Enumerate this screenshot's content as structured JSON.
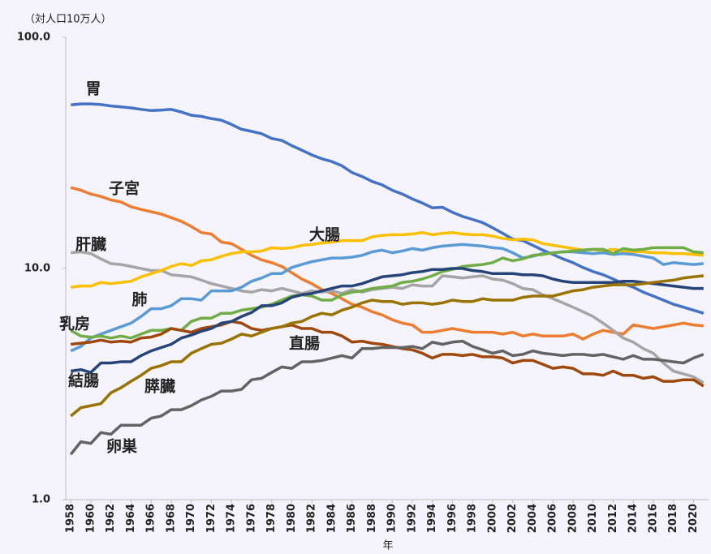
{
  "chart_data": {
    "type": "line",
    "y_label": "（対人口10万人）",
    "x_label": "年",
    "log_y": true,
    "x": [
      1958,
      1959,
      1960,
      1961,
      1962,
      1963,
      1964,
      1965,
      1966,
      1967,
      1968,
      1969,
      1970,
      1971,
      1972,
      1973,
      1974,
      1975,
      1976,
      1977,
      1978,
      1979,
      1980,
      1981,
      1982,
      1983,
      1984,
      1985,
      1986,
      1987,
      1988,
      1989,
      1990,
      1991,
      1992,
      1993,
      1994,
      1995,
      1996,
      1997,
      1998,
      1999,
      2000,
      2001,
      2002,
      2003,
      2004,
      2005,
      2006,
      2007,
      2008,
      2009,
      2010,
      2011,
      2012,
      2013,
      2014,
      2015,
      2016,
      2017,
      2018,
      2019,
      2020,
      2021
    ],
    "xlim": [
      1957.5,
      2021.5
    ],
    "xticks": [
      1958,
      1960,
      1962,
      1964,
      1966,
      1968,
      1970,
      1972,
      1974,
      1976,
      1978,
      1980,
      1982,
      1984,
      1986,
      1988,
      1990,
      1992,
      1994,
      1996,
      1998,
      2000,
      2002,
      2004,
      2006,
      2008,
      2010,
      2012,
      2014,
      2016,
      2018,
      2020
    ],
    "ylim": [
      1,
      100
    ],
    "yticks": [
      {
        "value": 1,
        "label": "1.0"
      },
      {
        "value": 10,
        "label": "10.0"
      },
      {
        "value": 100,
        "label": "100.0"
      }
    ],
    "series": [
      {
        "name": "胃",
        "color": "#4472c4",
        "values": [
          51.0,
          51.5,
          51.5,
          51.2,
          50.5,
          50.0,
          49.5,
          48.8,
          48.2,
          48.4,
          48.8,
          47.5,
          46.0,
          45.5,
          44.5,
          43.8,
          42.0,
          40.0,
          39.2,
          38.3,
          36.5,
          35.8,
          34.0,
          32.5,
          31.0,
          29.8,
          29.0,
          27.8,
          26.0,
          25.0,
          23.8,
          23.0,
          21.8,
          21.0,
          20.0,
          19.2,
          18.3,
          18.4,
          17.5,
          16.8,
          16.3,
          15.8,
          15.0,
          14.2,
          13.4,
          13.2,
          12.6,
          12.0,
          11.5,
          11.0,
          10.6,
          10.1,
          9.7,
          9.4,
          9.0,
          8.6,
          8.3,
          7.9,
          7.6,
          7.3,
          7.0,
          6.8,
          6.6,
          6.4
        ]
      },
      {
        "name": "子宮",
        "color": "#ed7d31",
        "values": [
          22.4,
          21.8,
          21.0,
          20.5,
          19.8,
          19.4,
          18.5,
          18.0,
          17.6,
          17.2,
          16.6,
          16.0,
          15.2,
          14.3,
          14.1,
          13.0,
          12.8,
          12.1,
          11.4,
          10.9,
          10.6,
          10.2,
          9.6,
          9.0,
          8.6,
          8.1,
          7.8,
          7.4,
          7.0,
          6.8,
          6.5,
          6.3,
          6.0,
          5.8,
          5.7,
          5.3,
          5.3,
          5.4,
          5.5,
          5.4,
          5.3,
          5.3,
          5.3,
          5.2,
          5.3,
          5.1,
          5.2,
          5.1,
          5.1,
          5.1,
          5.2,
          4.95,
          5.2,
          5.4,
          5.3,
          5.2,
          5.7,
          5.6,
          5.5,
          5.6,
          5.7,
          5.8,
          5.7,
          5.65
        ]
      },
      {
        "name": "肝臓",
        "color": "#a5a5a5",
        "values": [
          11.7,
          11.8,
          11.6,
          11.0,
          10.5,
          10.4,
          10.2,
          10.0,
          9.8,
          9.8,
          9.4,
          9.3,
          9.2,
          8.9,
          8.6,
          8.4,
          8.2,
          8.0,
          7.9,
          8.1,
          8.0,
          8.2,
          8.0,
          7.8,
          8.0,
          7.9,
          8.0,
          7.8,
          8.1,
          7.9,
          8.1,
          8.2,
          8.3,
          8.2,
          8.5,
          8.4,
          8.4,
          9.3,
          9.2,
          9.1,
          9.2,
          9.3,
          9.0,
          8.9,
          8.6,
          8.2,
          8.1,
          7.7,
          7.4,
          7.1,
          6.8,
          6.5,
          6.2,
          5.8,
          5.4,
          5.0,
          4.8,
          4.5,
          4.3,
          3.9,
          3.6,
          3.5,
          3.4,
          3.2
        ]
      },
      {
        "name": "大腸",
        "color": "#ffc000",
        "values": [
          8.3,
          8.4,
          8.4,
          8.7,
          8.6,
          8.7,
          8.8,
          9.2,
          9.5,
          9.8,
          10.2,
          10.5,
          10.3,
          10.8,
          10.9,
          11.3,
          11.6,
          11.8,
          11.8,
          11.9,
          12.3,
          12.2,
          12.3,
          12.6,
          12.7,
          12.9,
          13.0,
          13.2,
          13.2,
          13.2,
          13.7,
          13.9,
          14.0,
          14.0,
          14.1,
          14.3,
          14.0,
          14.2,
          14.3,
          14.1,
          14.0,
          14.0,
          13.8,
          13.5,
          13.3,
          13.4,
          13.3,
          12.8,
          12.6,
          12.4,
          12.2,
          12.0,
          12.1,
          11.9,
          12.1,
          11.9,
          11.8,
          11.8,
          11.7,
          11.7,
          11.6,
          11.6,
          11.5,
          11.4
        ]
      },
      {
        "name": "肺",
        "color": "#5b9bd5",
        "values": [
          4.4,
          4.6,
          5.0,
          5.2,
          5.4,
          5.6,
          5.8,
          6.2,
          6.7,
          6.7,
          6.9,
          7.4,
          7.4,
          7.3,
          8.0,
          8.0,
          8.0,
          8.3,
          8.8,
          9.1,
          9.5,
          9.5,
          10.1,
          10.4,
          10.7,
          10.9,
          11.1,
          11.1,
          11.2,
          11.4,
          11.8,
          12.0,
          11.7,
          11.9,
          12.2,
          12.0,
          12.3,
          12.5,
          12.6,
          12.7,
          12.6,
          12.5,
          12.3,
          12.2,
          11.7,
          11.1,
          11.3,
          11.6,
          11.7,
          11.8,
          11.8,
          11.7,
          11.6,
          11.7,
          11.5,
          11.6,
          11.5,
          11.3,
          11.1,
          10.4,
          10.6,
          10.5,
          10.4,
          10.5
        ]
      },
      {
        "name": "乳房",
        "color": "#70ad47",
        "values": [
          5.4,
          5.1,
          5.05,
          5.1,
          5.0,
          5.1,
          5.0,
          5.2,
          5.4,
          5.4,
          5.5,
          5.4,
          5.9,
          6.1,
          6.1,
          6.4,
          6.4,
          6.6,
          6.7,
          6.8,
          7.0,
          7.3,
          7.6,
          7.7,
          7.6,
          7.3,
          7.3,
          7.7,
          7.9,
          8.0,
          8.2,
          8.3,
          8.4,
          8.7,
          8.8,
          9.0,
          9.3,
          9.7,
          9.9,
          10.2,
          10.3,
          10.4,
          10.6,
          11.1,
          10.8,
          11.0,
          11.4,
          11.5,
          11.7,
          11.8,
          11.9,
          12.0,
          12.1,
          12.1,
          11.6,
          12.2,
          12.0,
          12.1,
          12.3,
          12.3,
          12.3,
          12.3,
          11.8,
          11.7
        ]
      },
      {
        "name": "直腸",
        "color": "#9e480e",
        "values": [
          4.7,
          4.75,
          4.8,
          4.9,
          4.8,
          4.85,
          4.8,
          5.0,
          5.05,
          5.2,
          5.5,
          5.4,
          5.3,
          5.5,
          5.6,
          5.7,
          5.9,
          5.8,
          5.5,
          5.4,
          5.5,
          5.6,
          5.7,
          5.5,
          5.5,
          5.3,
          5.3,
          5.1,
          4.8,
          4.85,
          4.75,
          4.7,
          4.6,
          4.5,
          4.45,
          4.3,
          4.1,
          4.25,
          4.25,
          4.2,
          4.25,
          4.15,
          4.15,
          4.1,
          3.9,
          4.0,
          4.0,
          3.85,
          3.7,
          3.75,
          3.7,
          3.5,
          3.5,
          3.45,
          3.6,
          3.45,
          3.45,
          3.35,
          3.4,
          3.25,
          3.25,
          3.3,
          3.3,
          3.1
        ]
      },
      {
        "name": "結腸",
        "color": "#264478",
        "values": [
          3.6,
          3.65,
          3.55,
          3.9,
          3.9,
          3.95,
          3.95,
          4.2,
          4.4,
          4.55,
          4.7,
          5.0,
          5.15,
          5.35,
          5.5,
          5.8,
          5.9,
          6.2,
          6.45,
          6.9,
          6.9,
          7.1,
          7.5,
          7.7,
          7.8,
          8.0,
          8.2,
          8.4,
          8.4,
          8.6,
          8.9,
          9.2,
          9.3,
          9.4,
          9.6,
          9.7,
          9.9,
          9.9,
          10.0,
          10.0,
          9.8,
          9.7,
          9.5,
          9.5,
          9.5,
          9.4,
          9.4,
          9.3,
          9.0,
          8.8,
          8.7,
          8.7,
          8.7,
          8.7,
          8.7,
          8.8,
          8.8,
          8.7,
          8.6,
          8.5,
          8.4,
          8.3,
          8.2,
          8.2
        ]
      },
      {
        "name": "膵臓",
        "color": "#997300",
        "values": [
          2.3,
          2.5,
          2.55,
          2.6,
          2.9,
          3.05,
          3.25,
          3.45,
          3.7,
          3.8,
          3.95,
          3.95,
          4.3,
          4.5,
          4.7,
          4.75,
          4.95,
          5.2,
          5.1,
          5.3,
          5.5,
          5.6,
          5.8,
          5.9,
          6.2,
          6.4,
          6.3,
          6.6,
          6.8,
          7.1,
          7.3,
          7.2,
          7.2,
          7.0,
          7.1,
          7.1,
          7.0,
          7.1,
          7.3,
          7.2,
          7.2,
          7.4,
          7.3,
          7.3,
          7.3,
          7.5,
          7.6,
          7.6,
          7.6,
          7.8,
          8.0,
          8.1,
          8.3,
          8.4,
          8.5,
          8.5,
          8.5,
          8.6,
          8.7,
          8.8,
          8.9,
          9.1,
          9.2,
          9.3
        ]
      },
      {
        "name": "卵巣",
        "color": "#636363",
        "values": [
          1.57,
          1.78,
          1.75,
          1.95,
          1.92,
          2.1,
          2.1,
          2.1,
          2.25,
          2.3,
          2.45,
          2.45,
          2.55,
          2.7,
          2.8,
          2.95,
          2.95,
          3.0,
          3.3,
          3.35,
          3.55,
          3.75,
          3.7,
          3.95,
          3.95,
          4.0,
          4.1,
          4.2,
          4.1,
          4.5,
          4.5,
          4.55,
          4.55,
          4.55,
          4.6,
          4.5,
          4.8,
          4.7,
          4.8,
          4.85,
          4.6,
          4.45,
          4.3,
          4.4,
          4.2,
          4.25,
          4.4,
          4.3,
          4.25,
          4.2,
          4.25,
          4.25,
          4.2,
          4.25,
          4.15,
          4.05,
          4.2,
          4.05,
          4.05,
          4.0,
          3.95,
          3.9,
          4.1,
          4.25
        ]
      }
    ]
  }
}
